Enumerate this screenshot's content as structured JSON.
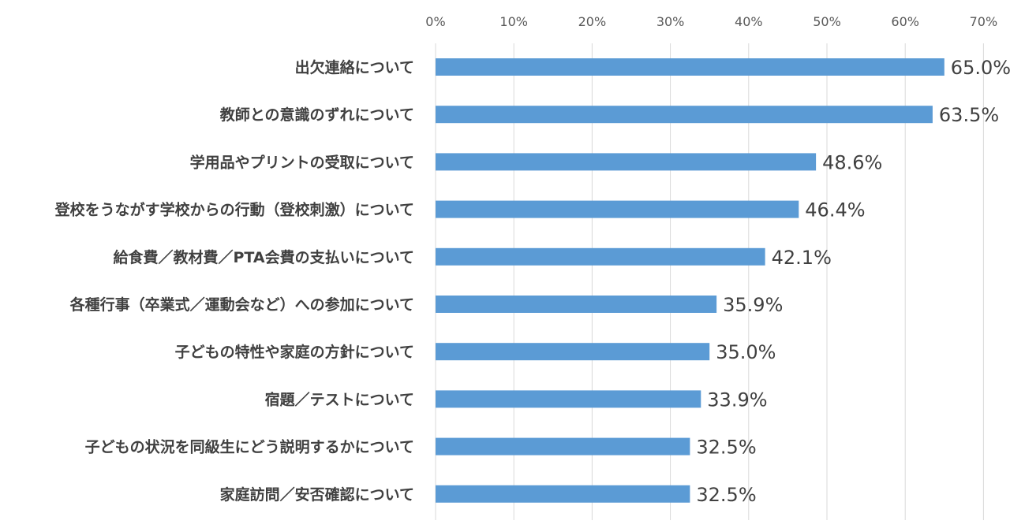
{
  "chart_data": {
    "type": "bar",
    "orientation": "horizontal",
    "title": "",
    "xlabel": "",
    "ylabel": "",
    "xlim": [
      0,
      70
    ],
    "x_ticks": [
      0,
      10,
      20,
      30,
      40,
      50,
      60,
      70
    ],
    "x_tick_labels": [
      "0%",
      "10%",
      "20%",
      "30%",
      "40%",
      "50%",
      "60%",
      "70%"
    ],
    "x_axis_position": "top",
    "grid": "vertical",
    "legend": "none",
    "bar_color": "#5b9bd5",
    "categories": [
      "出欠連絡について",
      "教師との意識のずれについて",
      "学用品やプリントの受取について",
      "登校をうながす学校からの行動（登校刺激）について",
      "給食費／教材費／PTA会費の支払いについて",
      "各種行事（卒業式／運動会など）への参加について",
      "子どもの特性や家庭の方針について",
      "宿題／テストについて",
      "子どもの状況を同級生にどう説明するかについて",
      "家庭訪問／安否確認について"
    ],
    "values": [
      65.0,
      63.5,
      48.6,
      46.4,
      42.1,
      35.9,
      35.0,
      33.9,
      32.5,
      32.5
    ],
    "value_labels": [
      "65.0%",
      "63.5%",
      "48.6%",
      "46.4%",
      "42.1%",
      "35.9%",
      "35.0%",
      "33.9%",
      "32.5%",
      "32.5%"
    ]
  }
}
